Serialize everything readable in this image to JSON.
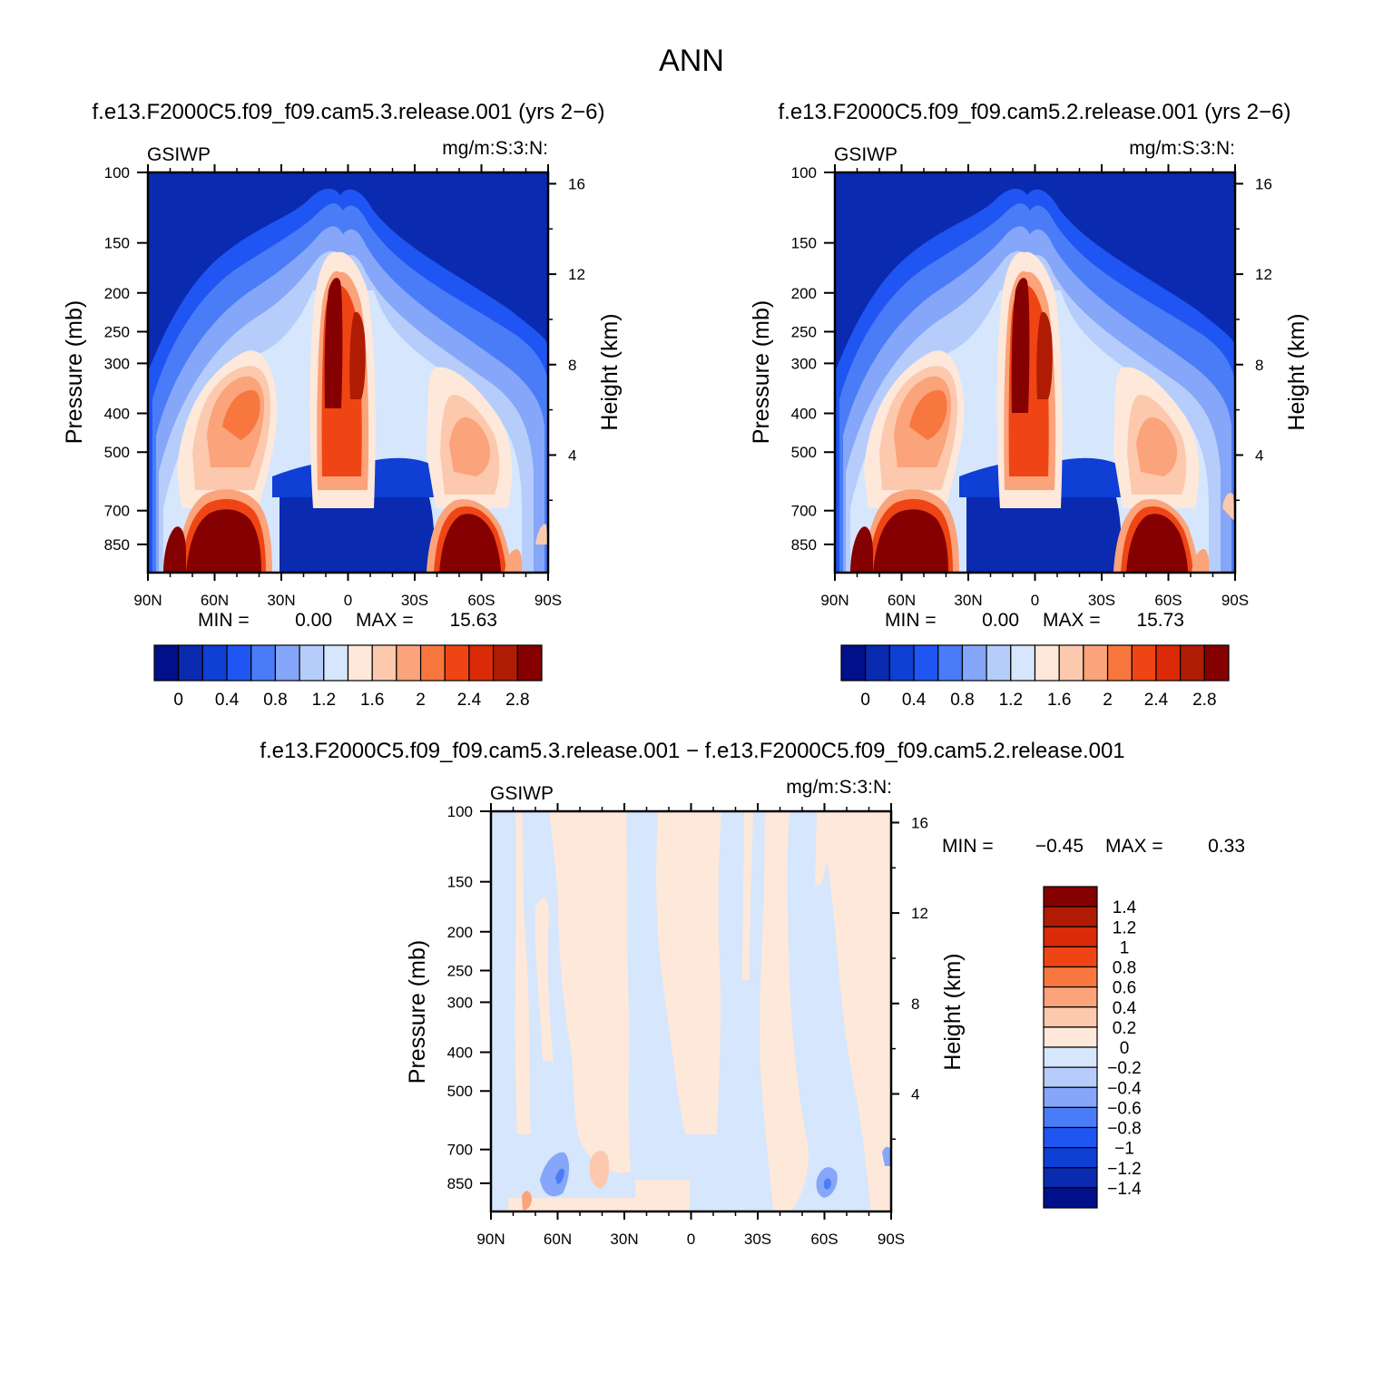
{
  "title": "ANN",
  "colors": {
    "abs_scale": [
      "#000f8a",
      "#0a2ab0",
      "#0f3fd4",
      "#1f55f2",
      "#4a7cf7",
      "#85a6f9",
      "#b6cdfb",
      "#d6e6fc",
      "#fde8da",
      "#fcc9ae",
      "#fba37a",
      "#f7773f",
      "#ef4515",
      "#da2a07",
      "#b01c03",
      "#850000"
    ],
    "diff_scale": [
      "#000f8a",
      "#0a2ab0",
      "#0f3fd4",
      "#1f55f2",
      "#4a7cf7",
      "#85a6f9",
      "#b6cdfb",
      "#d6e6fc",
      "#fde8da",
      "#fcc9ae",
      "#fba37a",
      "#f7773f",
      "#ef4515",
      "#da2a07",
      "#b01c03",
      "#850000"
    ]
  },
  "chart_data": [
    {
      "type": "heatmap",
      "title": "f.e13.F2000C5.f09_f09.cam5.3.release.001  (yrs 2−6)",
      "left_label": "GSIWP",
      "right_label": "mg/m:S:3:N:",
      "ylabel": "Pressure (mb)",
      "y2label": "Height (km)",
      "xticks": [
        "90N",
        "60N",
        "30N",
        "0",
        "30S",
        "60S",
        "90S"
      ],
      "yticks": [
        "100",
        "150",
        "200",
        "250",
        "300",
        "400",
        "500",
        "700",
        "850"
      ],
      "y2ticks": [
        "16",
        "12",
        "8",
        "4"
      ],
      "min_label": "MIN =",
      "min_value": "0.00",
      "max_label": "MAX =",
      "max_value": "15.63",
      "colorbar_labels": [
        "0",
        "0.4",
        "0.8",
        "1.2",
        "1.6",
        "2",
        "2.4",
        "2.8"
      ]
    },
    {
      "type": "heatmap",
      "title": "f.e13.F2000C5.f09_f09.cam5.2.release.001  (yrs 2−6)",
      "left_label": "GSIWP",
      "right_label": "mg/m:S:3:N:",
      "ylabel": "Pressure (mb)",
      "y2label": "Height (km)",
      "xticks": [
        "90N",
        "60N",
        "30N",
        "0",
        "30S",
        "60S",
        "90S"
      ],
      "yticks": [
        "100",
        "150",
        "200",
        "250",
        "300",
        "400",
        "500",
        "700",
        "850"
      ],
      "y2ticks": [
        "16",
        "12",
        "8",
        "4"
      ],
      "min_label": "MIN =",
      "min_value": "0.00",
      "max_label": "MAX =",
      "max_value": "15.73",
      "colorbar_labels": [
        "0",
        "0.4",
        "0.8",
        "1.2",
        "1.6",
        "2",
        "2.4",
        "2.8"
      ]
    },
    {
      "type": "heatmap",
      "title": "f.e13.F2000C5.f09_f09.cam5.3.release.001 − f.e13.F2000C5.f09_f09.cam5.2.release.001",
      "left_label": "GSIWP",
      "right_label": "mg/m:S:3:N:",
      "ylabel": "Pressure (mb)",
      "y2label": "Height (km)",
      "xticks": [
        "90N",
        "60N",
        "30N",
        "0",
        "30S",
        "60S",
        "90S"
      ],
      "yticks": [
        "100",
        "150",
        "200",
        "250",
        "300",
        "400",
        "500",
        "700",
        "850"
      ],
      "y2ticks": [
        "16",
        "12",
        "8",
        "4"
      ],
      "min_label": "MIN =",
      "min_value": "−0.45",
      "max_label": "MAX =",
      "max_value": "0.33",
      "colorbar_labels": [
        "1.4",
        "1.2",
        "1",
        "0.8",
        "0.6",
        "0.4",
        "0.2",
        "0",
        "−0.2",
        "−0.4",
        "−0.6",
        "−0.8",
        "−1",
        "−1.2",
        "−1.4"
      ]
    }
  ]
}
